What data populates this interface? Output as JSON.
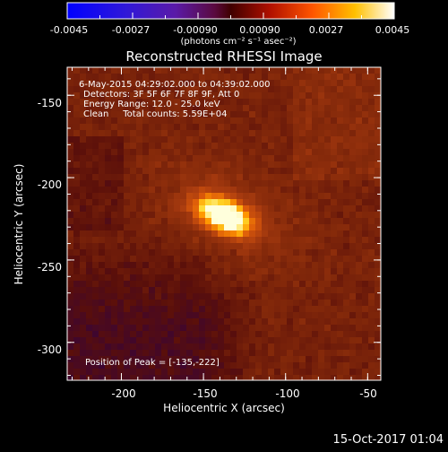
{
  "colorbar": {
    "tick_labels": [
      "-0.0045",
      "-0.0027",
      "-0.00090",
      "0.00090",
      "0.0027",
      "0.0045"
    ],
    "unit_label": "(photons cm⁻² s⁻¹ asec⁻²)",
    "range": [
      -0.0045,
      0.0045
    ]
  },
  "title": "Reconstructed RHESSI Image",
  "info": {
    "line1": "6-May-2015 04:29:02.000 to 04:39:02.000",
    "line2": "Detectors: 3F 5F 6F 7F 8F 9F, Att 0",
    "line3": "Energy Range: 12.0 - 25.0 keV",
    "line4": "Clean     Total counts: 5.59E+04",
    "peak": "Position of Peak = [-135,-222]"
  },
  "axes": {
    "xlabel": "Heliocentric X (arcsec)",
    "ylabel": "Heliocentric Y (arcsec)",
    "xlim": [
      -233,
      -42
    ],
    "ylim": [
      -323,
      -133
    ],
    "xticks": [
      -200,
      -150,
      -100,
      -50
    ],
    "yticks": [
      -150,
      -200,
      -250,
      -300
    ],
    "xtick_labels": [
      "-200",
      "-150",
      "-100",
      "-50"
    ],
    "ytick_labels": [
      "-150",
      "-200",
      "-250",
      "-300"
    ]
  },
  "source": {
    "peak_x": -135,
    "peak_y": -222
  },
  "timestamp": "15-Oct-2017 01:04"
}
